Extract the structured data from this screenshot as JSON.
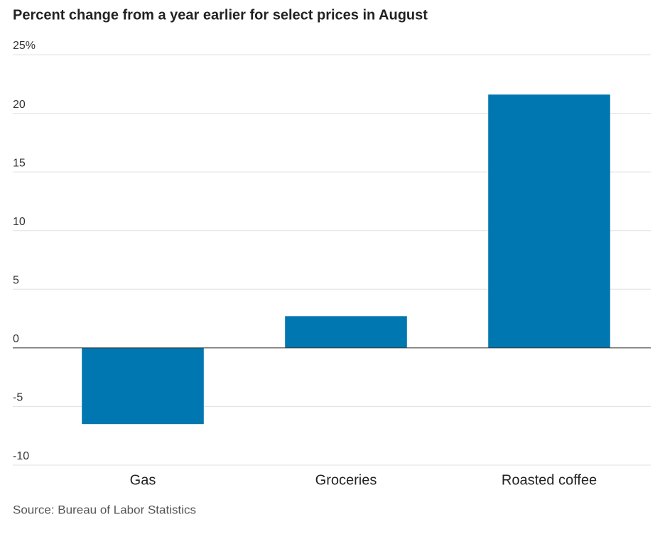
{
  "chart_data": {
    "type": "bar",
    "title": "Percent change from a year earlier for select prices in August",
    "categories": [
      "Gas",
      "Groceries",
      "Roasted coffee"
    ],
    "values": [
      -6.5,
      2.7,
      21.6
    ],
    "color": "#0077b0",
    "ylim": [
      -10,
      25
    ],
    "yticks": [
      -10,
      -5,
      0,
      5,
      10,
      15,
      {
        "value": 25,
        "label": "25%"
      },
      20
    ],
    "grid": true,
    "source": "Source: Bureau of Labor Statistics"
  }
}
